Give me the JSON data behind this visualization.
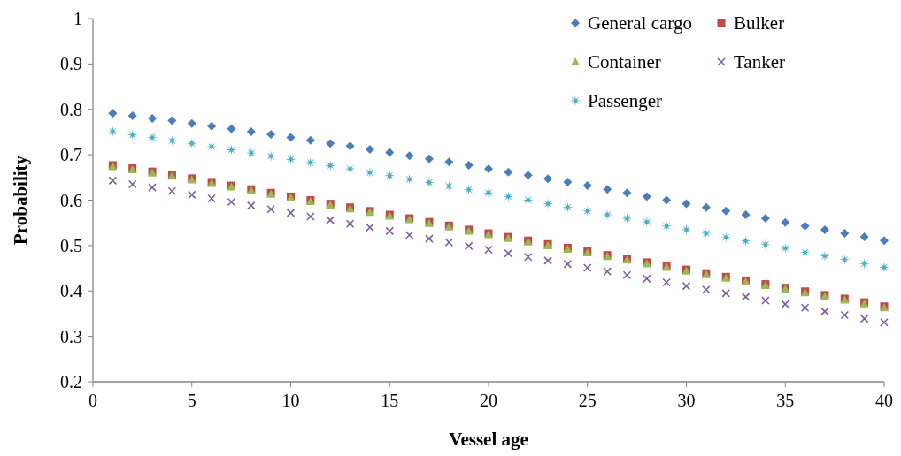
{
  "chart_data": {
    "type": "scatter",
    "xlabel": "Vessel age",
    "ylabel": "Probability",
    "x": [
      1,
      2,
      3,
      4,
      5,
      6,
      7,
      8,
      9,
      10,
      11,
      12,
      13,
      14,
      15,
      16,
      17,
      18,
      19,
      20,
      21,
      22,
      23,
      24,
      25,
      26,
      27,
      28,
      29,
      30,
      31,
      32,
      33,
      34,
      35,
      36,
      37,
      38,
      39,
      40
    ],
    "xlim": [
      0,
      40
    ],
    "xticks": [
      0,
      5,
      10,
      15,
      20,
      25,
      30,
      35,
      40
    ],
    "ylim": [
      0.2,
      1
    ],
    "yticks": [
      0.2,
      0.3,
      0.4,
      0.5,
      0.6,
      0.7,
      0.8,
      0.9,
      1
    ],
    "legend": "top right",
    "grid": false,
    "series": [
      {
        "name": "General cargo",
        "color": "#4a7ebb",
        "marker": "diamond",
        "values": [
          0.791,
          0.786,
          0.78,
          0.775,
          0.769,
          0.763,
          0.757,
          0.751,
          0.745,
          0.738,
          0.732,
          0.725,
          0.719,
          0.712,
          0.705,
          0.698,
          0.691,
          0.684,
          0.677,
          0.669,
          0.662,
          0.655,
          0.647,
          0.64,
          0.632,
          0.624,
          0.616,
          0.608,
          0.6,
          0.592,
          0.584,
          0.576,
          0.568,
          0.56,
          0.551,
          0.543,
          0.535,
          0.527,
          0.519,
          0.511
        ]
      },
      {
        "name": "Bulker",
        "color": "#be4b48",
        "marker": "square",
        "values": [
          0.677,
          0.67,
          0.663,
          0.656,
          0.648,
          0.64,
          0.632,
          0.624,
          0.616,
          0.608,
          0.6,
          0.592,
          0.584,
          0.576,
          0.568,
          0.56,
          0.552,
          0.544,
          0.535,
          0.527,
          0.519,
          0.511,
          0.503,
          0.495,
          0.487,
          0.479,
          0.471,
          0.463,
          0.455,
          0.447,
          0.439,
          0.431,
          0.423,
          0.415,
          0.407,
          0.399,
          0.391,
          0.383,
          0.375,
          0.366
        ]
      },
      {
        "name": "Container",
        "color": "#98b954",
        "marker": "triangle",
        "values": [
          0.674,
          0.667,
          0.66,
          0.653,
          0.645,
          0.637,
          0.629,
          0.621,
          0.613,
          0.605,
          0.597,
          0.589,
          0.581,
          0.573,
          0.565,
          0.557,
          0.549,
          0.541,
          0.532,
          0.524,
          0.516,
          0.508,
          0.5,
          0.492,
          0.484,
          0.476,
          0.468,
          0.46,
          0.452,
          0.444,
          0.436,
          0.428,
          0.42,
          0.412,
          0.404,
          0.396,
          0.388,
          0.38,
          0.372,
          0.363
        ]
      },
      {
        "name": "Tanker",
        "color": "#7d5fa0",
        "marker": "cross",
        "values": [
          0.643,
          0.635,
          0.628,
          0.62,
          0.612,
          0.604,
          0.596,
          0.588,
          0.58,
          0.572,
          0.564,
          0.556,
          0.548,
          0.54,
          0.532,
          0.523,
          0.515,
          0.507,
          0.499,
          0.491,
          0.483,
          0.475,
          0.467,
          0.459,
          0.451,
          0.443,
          0.435,
          0.427,
          0.419,
          0.411,
          0.403,
          0.395,
          0.387,
          0.379,
          0.371,
          0.363,
          0.355,
          0.347,
          0.339,
          0.331
        ]
      },
      {
        "name": "Passenger",
        "color": "#4bacc6",
        "marker": "star",
        "values": [
          0.751,
          0.744,
          0.738,
          0.731,
          0.725,
          0.718,
          0.711,
          0.704,
          0.697,
          0.69,
          0.683,
          0.676,
          0.669,
          0.661,
          0.654,
          0.646,
          0.639,
          0.631,
          0.623,
          0.616,
          0.608,
          0.6,
          0.592,
          0.584,
          0.576,
          0.568,
          0.56,
          0.552,
          0.543,
          0.535,
          0.527,
          0.518,
          0.51,
          0.502,
          0.494,
          0.485,
          0.477,
          0.469,
          0.46,
          0.452
        ]
      }
    ]
  }
}
